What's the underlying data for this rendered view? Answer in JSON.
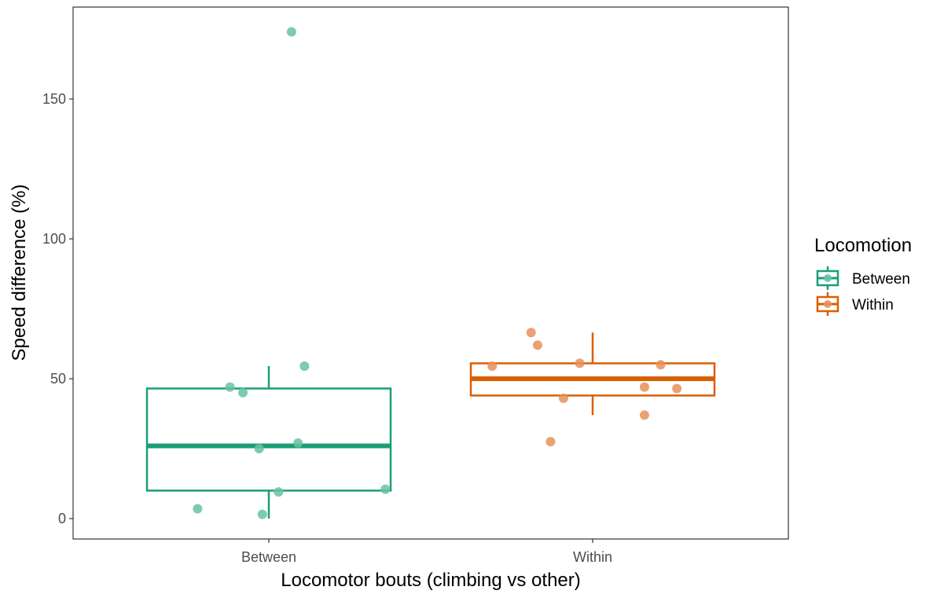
{
  "chart_data": {
    "type": "boxplot",
    "xlabel": "Locomotor bouts (climbing vs other)",
    "ylabel": "Speed difference (%)",
    "categories": [
      "Between",
      "Within"
    ],
    "ylim": [
      -7,
      182
    ],
    "yticks": [
      0,
      50,
      100,
      150
    ],
    "grid": false,
    "legend": {
      "title": "Locomotion",
      "position": "right",
      "entries": [
        "Between",
        "Within"
      ]
    },
    "colors": {
      "Between": "#1b9e77",
      "Within": "#d95f02"
    },
    "boxes": [
      {
        "category": "Between",
        "q1": 10,
        "median": 26,
        "q3": 46.5,
        "whisker_low": 0,
        "whisker_high": 54.5
      },
      {
        "category": "Within",
        "q1": 44,
        "median": 50,
        "q3": 55.5,
        "whisker_low": 37,
        "whisker_high": 66.5
      }
    ],
    "points": [
      {
        "category": "Between",
        "x": 1.07,
        "y": 174
      },
      {
        "category": "Between",
        "x": 1.11,
        "y": 54.5
      },
      {
        "category": "Between",
        "x": 0.88,
        "y": 47
      },
      {
        "category": "Between",
        "x": 0.92,
        "y": 45
      },
      {
        "category": "Between",
        "x": 1.09,
        "y": 27
      },
      {
        "category": "Between",
        "x": 0.97,
        "y": 25
      },
      {
        "category": "Between",
        "x": 1.36,
        "y": 10.5
      },
      {
        "category": "Between",
        "x": 1.03,
        "y": 9.5
      },
      {
        "category": "Between",
        "x": 0.78,
        "y": 3.5
      },
      {
        "category": "Between",
        "x": 0.98,
        "y": 1.5
      },
      {
        "category": "Within",
        "x": 1.81,
        "y": 66.5
      },
      {
        "category": "Within",
        "x": 1.83,
        "y": 62
      },
      {
        "category": "Within",
        "x": 1.69,
        "y": 54.5
      },
      {
        "category": "Within",
        "x": 1.96,
        "y": 55.5
      },
      {
        "category": "Within",
        "x": 2.21,
        "y": 55
      },
      {
        "category": "Within",
        "x": 2.16,
        "y": 47
      },
      {
        "category": "Within",
        "x": 2.26,
        "y": 46.5
      },
      {
        "category": "Within",
        "x": 1.91,
        "y": 43
      },
      {
        "category": "Within",
        "x": 2.16,
        "y": 37
      },
      {
        "category": "Within",
        "x": 1.87,
        "y": 27.5
      }
    ]
  }
}
